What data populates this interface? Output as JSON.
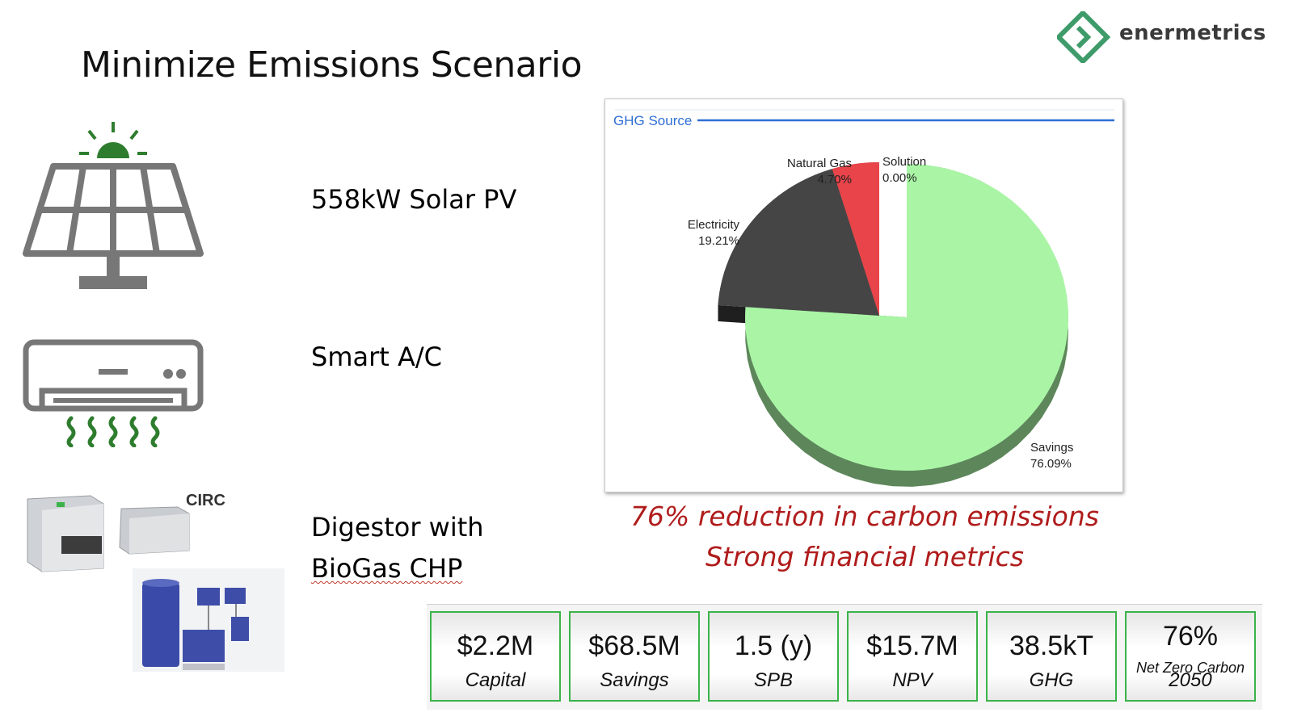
{
  "slide": {
    "title": "Minimize Emissions Scenario",
    "logo_text": "enermetrics"
  },
  "features": [
    {
      "label": "558kW Solar PV",
      "icon": "solar-panel-icon"
    },
    {
      "label": "Smart A/C",
      "icon": "air-conditioner-icon"
    },
    {
      "label_line1": "Digestor with",
      "label_line2": "BioGas CHP",
      "icon": "digestor-equipment-image"
    }
  ],
  "equipment_brand": "CIRC",
  "chart_data": {
    "type": "pie",
    "title": "GHG Source",
    "slices": [
      {
        "label": "Savings",
        "value": 76.09,
        "display": "76.09%",
        "color": "#a9f5a5"
      },
      {
        "label": "Electricity",
        "value": 19.21,
        "display": "19.21%",
        "color": "#454545"
      },
      {
        "label": "Natural Gas",
        "value": 4.7,
        "display": "4.70%",
        "color": "#e8444a"
      },
      {
        "label": "Solution",
        "value": 0.0,
        "display": "0.00%",
        "color": "#ffd24a"
      }
    ],
    "exploded": [
      "Electricity",
      "Natural Gas",
      "Solution"
    ],
    "legend": "none"
  },
  "taglines": {
    "line1": "76% reduction in carbon emissions",
    "line2": "Strong financial metrics"
  },
  "metrics": [
    {
      "value": "$2.2M",
      "label": "Capital"
    },
    {
      "value": "$68.5M",
      "label": "Savings"
    },
    {
      "value": "1.5 (y)",
      "label": "SPB"
    },
    {
      "value": "$15.7M",
      "label": "NPV"
    },
    {
      "value": "38.5kT",
      "label": "GHG"
    },
    {
      "value": "76%",
      "sub": "Net Zero Carbon",
      "label": "2050"
    }
  ],
  "colors": {
    "accent_green": "#3bb34a",
    "logo_green": "#3e9b6a",
    "tagline_red": "#b01c1c",
    "icon_gray": "#777777",
    "icon_green": "#2e7d2e"
  }
}
